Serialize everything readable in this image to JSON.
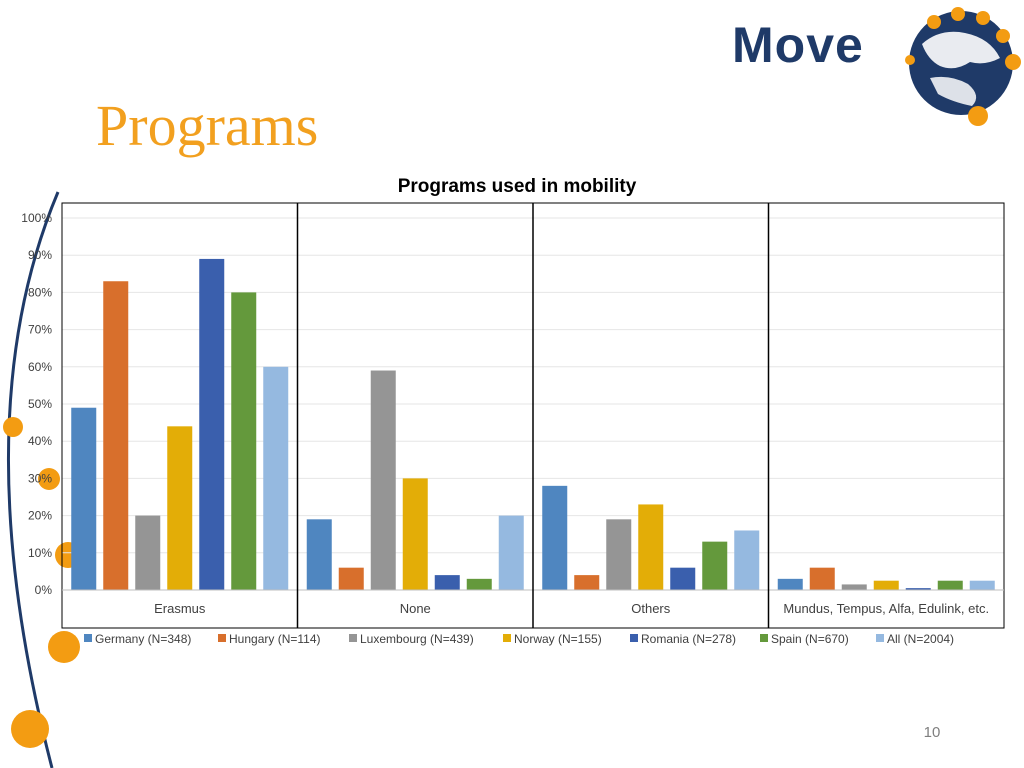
{
  "slide": {
    "title": "Programs",
    "logo_text": "Move",
    "page_number": "10"
  },
  "colors": {
    "accent_orange": "#f39c12",
    "navy": "#1f3a68"
  },
  "chart_data": {
    "type": "bar",
    "title": "Programs used in mobility",
    "xlabel": "",
    "ylabel": "",
    "ylim": [
      0,
      100
    ],
    "yticks": [
      "0%",
      "10%",
      "20%",
      "30%",
      "40%",
      "50%",
      "60%",
      "70%",
      "80%",
      "90%",
      "100%"
    ],
    "categories": [
      "Erasmus",
      "None",
      "Others",
      "Mundus, Tempus, Alfa, Edulink, etc."
    ],
    "legend_position": "bottom",
    "series": [
      {
        "name": "Germany (N=348)",
        "color": "#4f86c0",
        "values": [
          49,
          19,
          28,
          3
        ]
      },
      {
        "name": "Hungary (N=114)",
        "color": "#d86f2c",
        "values": [
          83,
          6,
          4,
          6
        ]
      },
      {
        "name": "Luxembourg (N=439)",
        "color": "#959595",
        "values": [
          20,
          59,
          19,
          1.5
        ]
      },
      {
        "name": "Norway (N=155)",
        "color": "#e3ad07",
        "values": [
          44,
          30,
          23,
          2.5
        ]
      },
      {
        "name": "Romania (N=278)",
        "color": "#3a5fad",
        "values": [
          89,
          4,
          6,
          0.5
        ]
      },
      {
        "name": "Spain (N=670)",
        "color": "#64993c",
        "values": [
          80,
          3,
          13,
          2.5
        ]
      },
      {
        "name": "All (N=2004)",
        "color": "#95b9e0",
        "values": [
          60,
          20,
          16,
          2.5
        ]
      }
    ]
  }
}
